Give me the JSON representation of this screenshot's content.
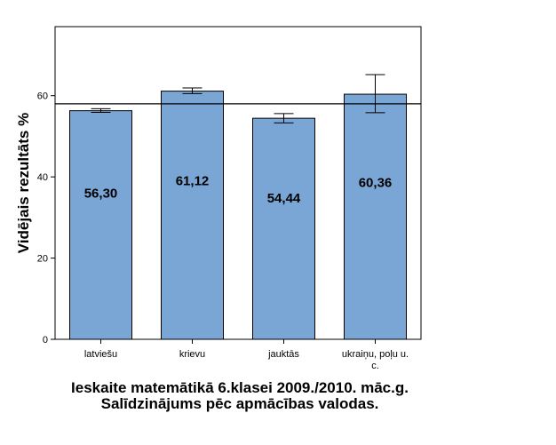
{
  "chart_data": {
    "type": "bar",
    "categories": [
      "latviešu",
      "krievu",
      "jauktās",
      "ukraiņu, poļu u. c."
    ],
    "values": [
      56.3,
      61.12,
      54.44,
      60.36
    ],
    "data_labels": [
      "56,30",
      "61,12",
      "54,44",
      "60,36"
    ],
    "error_bars": [
      {
        "low": 55.9,
        "high": 56.8
      },
      {
        "low": 60.5,
        "high": 61.9
      },
      {
        "low": 53.3,
        "high": 55.6
      },
      {
        "low": 55.8,
        "high": 65.2
      }
    ],
    "reference_line": 58.0,
    "ylabel": "Vidējais rezultāts %",
    "xlabel": "Ieskaite matemātikā 6.klasei 2009./2010. māc.g. Salīdzinājums pēc apmācības valodas.",
    "y_ticks": [
      0,
      20,
      40,
      60
    ],
    "ylim": [
      0,
      77
    ],
    "bar_color": "#7aa6d6",
    "grid": false
  }
}
